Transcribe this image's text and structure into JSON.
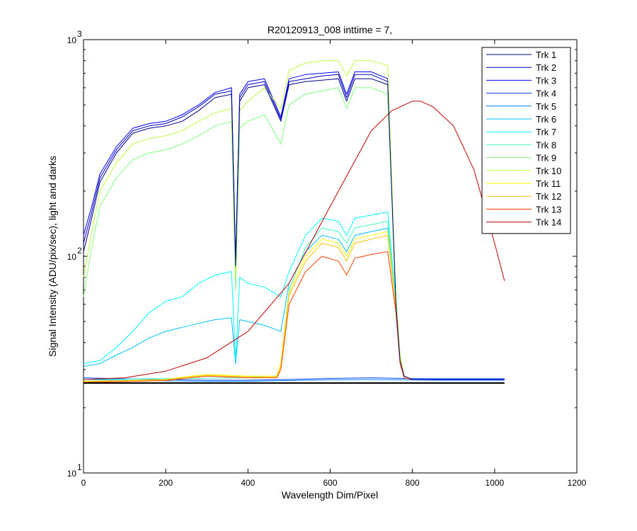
{
  "chart_data": {
    "type": "line",
    "title": "R20120913_008 inttime = 7,",
    "xlabel": "Wavelength Dim/Pixel",
    "ylabel": "Signal Intensity (ADU/pix/sec), light and darks",
    "xlim": [
      0,
      1200
    ],
    "ylim": [
      10,
      1000
    ],
    "yscale": "log",
    "x_ticks": [
      {
        "value": 0,
        "label": "0"
      },
      {
        "value": 200,
        "label": "200"
      },
      {
        "value": 400,
        "label": "400"
      },
      {
        "value": 600,
        "label": "600"
      },
      {
        "value": 800,
        "label": "800"
      },
      {
        "value": 1000,
        "label": "1000"
      },
      {
        "value": 1200,
        "label": "1200"
      }
    ],
    "y_ticks": [
      {
        "value": 10,
        "base": "10",
        "exp": "1"
      },
      {
        "value": 100,
        "base": "10",
        "exp": "2"
      },
      {
        "value": 1000,
        "base": "10",
        "exp": "3"
      }
    ],
    "grid": false,
    "legend_position": "top-right",
    "series": [
      {
        "name": "Trk 1",
        "color": "#00008f",
        "x": [
          0,
          20,
          40,
          80,
          120,
          160,
          200,
          240,
          280,
          320,
          360,
          370,
          380,
          400,
          440,
          480,
          500,
          540,
          580,
          620,
          640,
          660,
          700,
          740,
          760,
          770,
          780,
          800,
          860,
          1024
        ],
        "y": [
          105,
          150,
          220,
          300,
          370,
          390,
          400,
          420,
          470,
          540,
          560,
          90,
          520,
          600,
          620,
          420,
          620,
          640,
          650,
          660,
          520,
          660,
          660,
          620,
          60,
          33,
          28,
          27,
          27,
          27
        ]
      },
      {
        "name": "Trk 2",
        "color": "#0000bf",
        "x": [
          0,
          20,
          40,
          80,
          120,
          160,
          200,
          240,
          280,
          320,
          360,
          370,
          380,
          400,
          440,
          480,
          500,
          540,
          580,
          620,
          640,
          660,
          700,
          740,
          760,
          770,
          780,
          800,
          860,
          1024
        ],
        "y": [
          115,
          160,
          230,
          310,
          380,
          400,
          410,
          440,
          490,
          560,
          580,
          92,
          540,
          620,
          640,
          430,
          640,
          660,
          680,
          690,
          540,
          690,
          690,
          640,
          62,
          34,
          28,
          27,
          27,
          27
        ]
      },
      {
        "name": "Trk 3",
        "color": "#0000ff",
        "x": [
          0,
          20,
          40,
          80,
          120,
          160,
          200,
          240,
          280,
          320,
          360,
          370,
          380,
          400,
          440,
          480,
          500,
          540,
          580,
          620,
          640,
          660,
          700,
          740,
          760,
          770,
          780,
          800,
          860,
          1024
        ],
        "y": [
          125,
          170,
          240,
          320,
          390,
          410,
          420,
          450,
          500,
          570,
          600,
          95,
          560,
          640,
          660,
          440,
          660,
          690,
          700,
          710,
          560,
          710,
          710,
          660,
          64,
          34,
          28,
          27,
          27,
          27
        ]
      },
      {
        "name": "Trk 4",
        "color": "#0040ff",
        "x": [
          0,
          100,
          200,
          300,
          400,
          500,
          600,
          700,
          780,
          860,
          1024
        ],
        "y": [
          27.5,
          27.2,
          27,
          26.8,
          26.8,
          27,
          27.3,
          27.5,
          27.3,
          27.2,
          27.2
        ]
      },
      {
        "name": "Trk 5",
        "color": "#0080ff",
        "x": [
          0,
          100,
          200,
          300,
          400,
          500,
          600,
          700,
          780,
          860,
          1024
        ],
        "y": [
          27,
          26.8,
          26.6,
          26.5,
          26.5,
          26.7,
          26.9,
          27,
          26.9,
          26.8,
          26.8
        ]
      },
      {
        "name": "Trk 6",
        "color": "#00bfff",
        "x": [
          0,
          40,
          80,
          120,
          160,
          200,
          240,
          280,
          320,
          360,
          370,
          380,
          400,
          440,
          480,
          500,
          540,
          580,
          620,
          640,
          660,
          700,
          740,
          760,
          770,
          780,
          800,
          1024
        ],
        "y": [
          31,
          32,
          35,
          38,
          42,
          45,
          47,
          49,
          51,
          52,
          32,
          51,
          50,
          48,
          45,
          75,
          105,
          125,
          120,
          105,
          125,
          130,
          135,
          60,
          34,
          28,
          27,
          27
        ]
      },
      {
        "name": "Trk 7",
        "color": "#00ffff",
        "x": [
          0,
          40,
          80,
          120,
          160,
          200,
          240,
          280,
          320,
          360,
          370,
          380,
          400,
          440,
          480,
          500,
          540,
          580,
          620,
          640,
          660,
          700,
          740,
          760,
          770,
          780,
          800,
          1024
        ],
        "y": [
          32,
          33,
          38,
          45,
          55,
          62,
          65,
          75,
          82,
          85,
          33,
          80,
          75,
          72,
          65,
          85,
          125,
          150,
          145,
          125,
          150,
          155,
          160,
          62,
          35,
          28,
          27,
          27
        ]
      },
      {
        "name": "Trk 8",
        "color": "#40ffbf",
        "x": [
          0,
          400,
          470,
          480,
          500,
          540,
          580,
          620,
          640,
          660,
          700,
          740,
          760,
          770,
          780,
          800,
          1024
        ],
        "y": [
          27,
          27.5,
          28,
          32,
          70,
          110,
          135,
          130,
          115,
          135,
          140,
          145,
          60,
          34,
          28,
          27,
          27
        ]
      },
      {
        "name": "Trk 9",
        "color": "#80ff80",
        "x": [
          0,
          20,
          40,
          80,
          120,
          160,
          200,
          240,
          280,
          320,
          360,
          370,
          380,
          400,
          440,
          480,
          500,
          540,
          580,
          620,
          640,
          660,
          700,
          740,
          760,
          770,
          780,
          800,
          860,
          1024
        ],
        "y": [
          65,
          110,
          170,
          230,
          280,
          300,
          310,
          330,
          360,
          400,
          420,
          70,
          390,
          420,
          450,
          330,
          500,
          560,
          580,
          600,
          480,
          600,
          600,
          560,
          60,
          34,
          28,
          27,
          27,
          27
        ]
      },
      {
        "name": "Trk 10",
        "color": "#bfff40",
        "x": [
          0,
          20,
          40,
          80,
          120,
          160,
          200,
          240,
          280,
          320,
          360,
          370,
          380,
          400,
          440,
          480,
          500,
          540,
          580,
          620,
          640,
          660,
          700,
          740,
          760,
          770,
          780,
          800,
          860,
          1024
        ],
        "y": [
          80,
          130,
          200,
          270,
          330,
          350,
          360,
          380,
          420,
          460,
          480,
          80,
          470,
          520,
          600,
          480,
          720,
          780,
          800,
          800,
          680,
          800,
          800,
          760,
          65,
          35,
          28,
          27,
          27,
          27
        ]
      },
      {
        "name": "Trk 11",
        "color": "#ffff00",
        "x": [
          0,
          100,
          200,
          260,
          300,
          400,
          470,
          480,
          500,
          540,
          580,
          620,
          640,
          660,
          700,
          740,
          760,
          770,
          780,
          800,
          1024
        ],
        "y": [
          26.5,
          26.7,
          27,
          28,
          28.5,
          28,
          28,
          32,
          68,
          100,
          120,
          115,
          100,
          120,
          125,
          130,
          58,
          34,
          28,
          27,
          27
        ]
      },
      {
        "name": "Trk 12",
        "color": "#ffbf00",
        "x": [
          0,
          100,
          200,
          260,
          300,
          400,
          470,
          480,
          500,
          540,
          580,
          620,
          640,
          660,
          700,
          740,
          760,
          770,
          780,
          800,
          1024
        ],
        "y": [
          26.4,
          26.6,
          26.9,
          27.8,
          28.2,
          27.8,
          27.8,
          31,
          66,
          95,
          115,
          110,
          95,
          115,
          120,
          125,
          57,
          33,
          28,
          27,
          27
        ]
      },
      {
        "name": "Trk 13",
        "color": "#ff4000",
        "x": [
          0,
          100,
          200,
          260,
          300,
          400,
          470,
          480,
          500,
          540,
          580,
          620,
          640,
          660,
          700,
          740,
          760,
          770,
          780,
          800,
          1024
        ],
        "y": [
          26.2,
          26.4,
          26.7,
          27.5,
          28,
          27.5,
          27.5,
          30,
          60,
          85,
          100,
          95,
          82,
          98,
          102,
          105,
          55,
          32,
          27.5,
          27,
          27
        ]
      },
      {
        "name": "Trk 14",
        "color": "#bf0000",
        "x": [
          0,
          100,
          200,
          300,
          400,
          500,
          600,
          700,
          750,
          800,
          820,
          850,
          900,
          950,
          1000,
          1024
        ],
        "y": [
          27,
          27.5,
          29.5,
          34,
          45,
          75,
          170,
          380,
          470,
          520,
          520,
          490,
          400,
          250,
          115,
          77
        ]
      },
      {
        "name": "",
        "color": "#000000",
        "x": [
          0,
          200,
          400,
          600,
          800,
          1024
        ],
        "y": [
          26,
          26,
          26,
          26,
          26,
          26
        ]
      }
    ]
  }
}
